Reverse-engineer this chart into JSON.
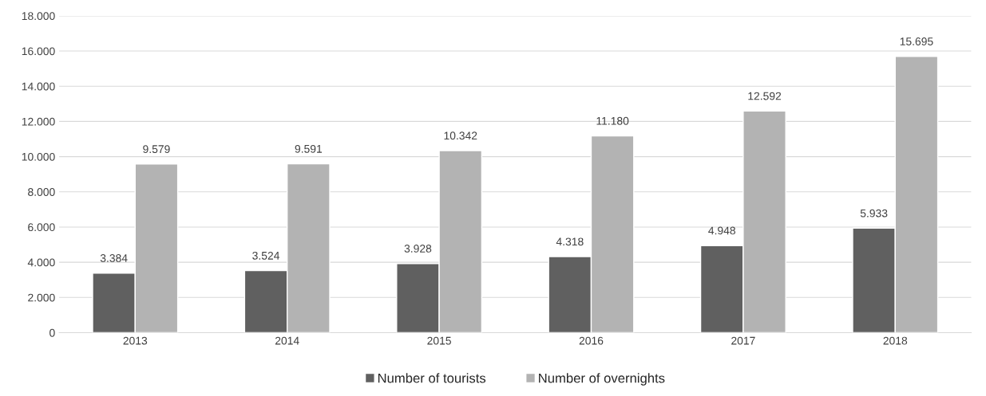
{
  "chart_data": {
    "type": "bar",
    "categories": [
      "2013",
      "2014",
      "2015",
      "2016",
      "2017",
      "2018"
    ],
    "series": [
      {
        "name": "Number of tourists",
        "color": "#606060",
        "values": [
          3384,
          3524,
          3928,
          4318,
          4948,
          5933
        ],
        "value_labels": [
          "3.384",
          "3.524",
          "3.928",
          "4.318",
          "4.948",
          "5.933"
        ]
      },
      {
        "name": "Number of overnights",
        "color": "#b3b3b3",
        "values": [
          9579,
          9591,
          10342,
          11180,
          12592,
          15695
        ],
        "value_labels": [
          "9.579",
          "9.591",
          "10.342",
          "11.180",
          "12.592",
          "15.695"
        ]
      }
    ],
    "ylim": [
      0,
      18000
    ],
    "yticks": [
      0,
      {
        "value": 2000,
        "label": "2.000"
      },
      {
        "value": 4000,
        "label": "4.000"
      },
      {
        "value": 6000,
        "label": "6.000"
      },
      {
        "value": 8000,
        "label": "8.000"
      },
      {
        "value": 10000,
        "label": "10.000"
      },
      {
        "value": 12000,
        "label": "12.000"
      },
      {
        "value": 14000,
        "label": "14.000"
      },
      {
        "value": 16000,
        "label": "16.000"
      },
      {
        "value": 18000,
        "label": "18.000"
      }
    ],
    "grid": "y",
    "legend": "bottom"
  }
}
